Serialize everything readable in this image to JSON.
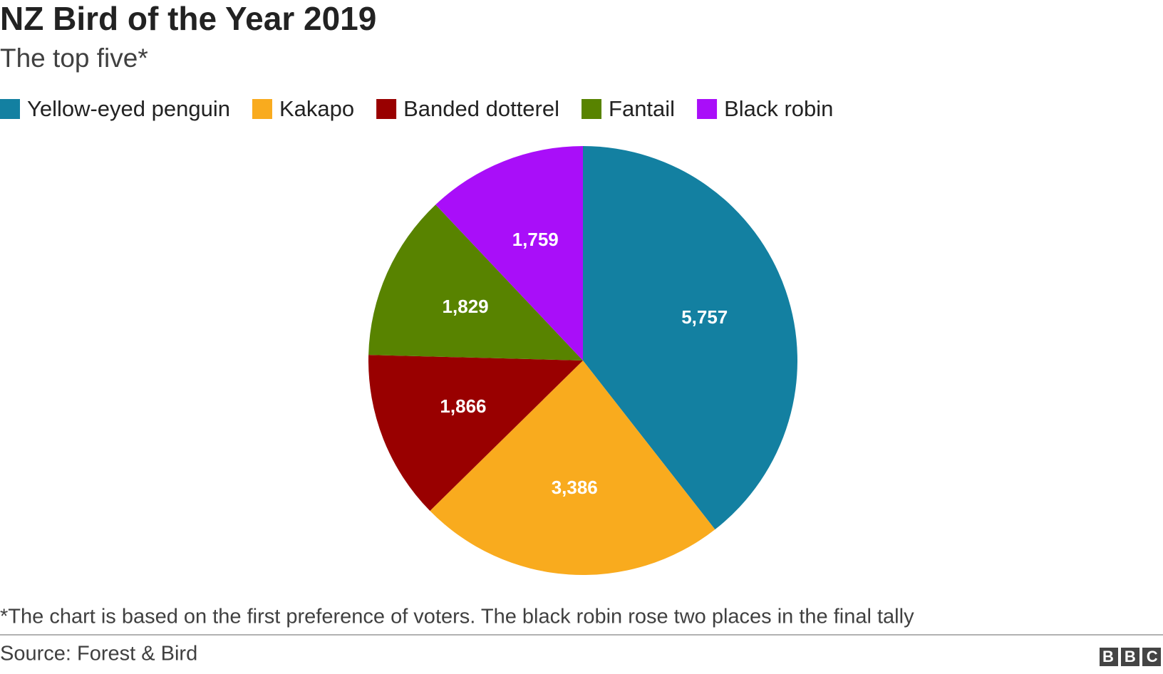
{
  "chart_data": {
    "type": "pie",
    "title": "NZ Bird of the Year 2019",
    "subtitle": "The top five*",
    "categories": [
      "Yellow-eyed penguin",
      "Kakapo",
      "Banded dotterel",
      "Fantail",
      "Black robin"
    ],
    "values": [
      5757,
      3386,
      1866,
      1829,
      1759
    ],
    "value_labels": [
      "5,757",
      "3,386",
      "1,866",
      "1,829",
      "1,759"
    ],
    "colors": [
      "#1380a1",
      "#f9ab1e",
      "#990000",
      "#588300",
      "#a90ef9"
    ],
    "legend": "top-left",
    "note": "*The chart is based on the first preference of voters. The black robin rose two places in the final tally",
    "source": "Source: Forest & Bird",
    "logo": "BBC"
  }
}
